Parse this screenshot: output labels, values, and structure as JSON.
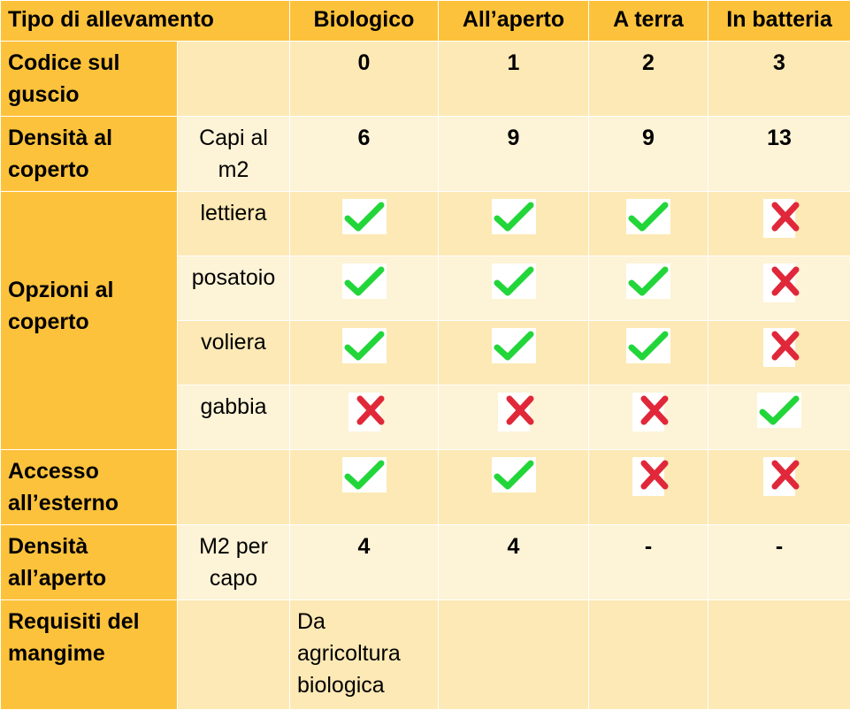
{
  "header": [
    "Tipo di allevamento",
    "Biologico",
    "All’aperto",
    "A terra",
    "In batteria"
  ],
  "rows": {
    "codice": {
      "label": "Codice sul guscio",
      "sub": "",
      "values": [
        "0",
        "1",
        "2",
        "3"
      ]
    },
    "densita_coperto": {
      "label": "Densità al coperto",
      "sub": "Capi al m2",
      "values": [
        "6",
        "9",
        "9",
        "13"
      ]
    },
    "opzioni": {
      "label": "Opzioni al coperto",
      "items": [
        {
          "sub": "lettiera",
          "marks": [
            "check-icon",
            "check-icon",
            "check-icon",
            "cross-icon"
          ]
        },
        {
          "sub": "posatoio",
          "marks": [
            "check-icon",
            "check-icon",
            "check-icon",
            "cross-icon"
          ]
        },
        {
          "sub": "voliera",
          "marks": [
            "check-icon",
            "check-icon",
            "check-icon",
            "cross-icon"
          ]
        },
        {
          "sub": "gabbia",
          "marks": [
            "cross-icon",
            "cross-icon",
            "cross-icon",
            "check-icon"
          ]
        }
      ]
    },
    "accesso": {
      "label": "Accesso all’esterno",
      "sub": "",
      "marks": [
        "check-icon",
        "check-icon",
        "cross-icon",
        "cross-icon"
      ]
    },
    "densita_aperto": {
      "label": "Densità all’aperto",
      "sub": "M2 per capo",
      "values": [
        "4",
        "4",
        "-",
        "-"
      ]
    },
    "requisiti": {
      "label": "Requisiti del mangime",
      "sub": "",
      "values": [
        "Da agricoltura biologica",
        "",
        "",
        ""
      ]
    }
  },
  "colors": {
    "header": "#fdc23c",
    "row_dark": "#fde9b5",
    "row_light": "#fdf3d6",
    "check": "#22d63a",
    "cross": "#e0283a"
  }
}
